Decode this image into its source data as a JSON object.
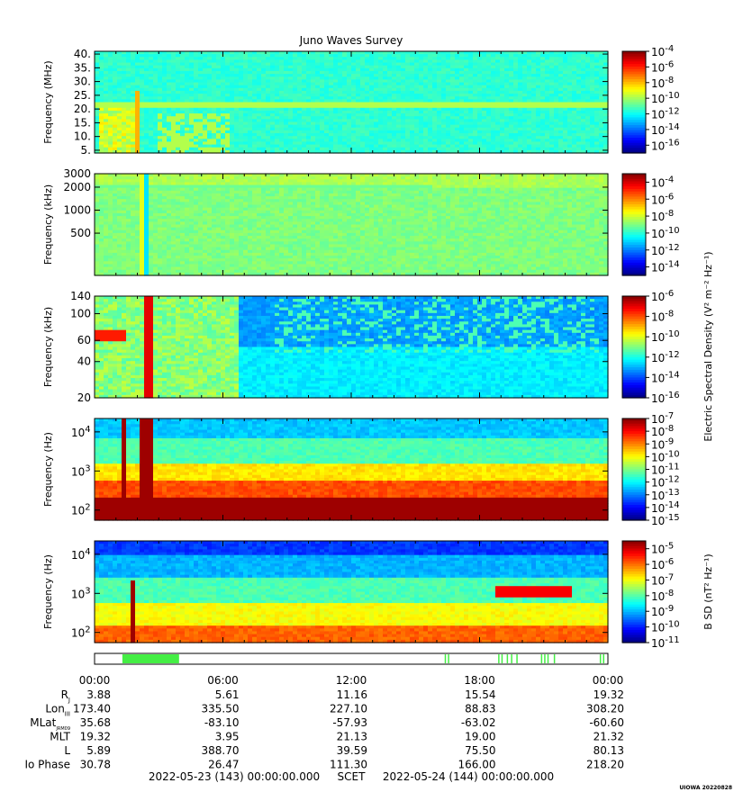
{
  "title": "Juno Waves Survey",
  "x_tick_labels": [
    "00:00",
    "06:00",
    "12:00",
    "18:00",
    "00:00"
  ],
  "ephemeris": [
    {
      "label": "R",
      "sub": "J",
      "values": [
        "3.88",
        "5.61",
        "11.16",
        "15.54",
        "19.32"
      ]
    },
    {
      "label": "Lon",
      "sub": "III",
      "values": [
        "173.40",
        "335.50",
        "227.10",
        "88.83",
        "308.20"
      ]
    },
    {
      "label": "MLat",
      "sub": "JRM09",
      "values": [
        "35.68",
        "-83.10",
        "-57.93",
        "-63.02",
        "-60.60"
      ]
    },
    {
      "label": "MLT",
      "sub": "",
      "values": [
        "19.32",
        "3.95",
        "21.13",
        "19.00",
        "21.32"
      ]
    },
    {
      "label": "L",
      "sub": "",
      "values": [
        "5.89",
        "388.70",
        "39.59",
        "75.50",
        "80.13"
      ]
    },
    {
      "label": "Io Phase",
      "sub": "",
      "values": [
        "30.78",
        "26.47",
        "111.30",
        "166.00",
        "218.20"
      ]
    }
  ],
  "footer": {
    "start": "2022-05-23 (143) 00:00:00.000",
    "scet": "SCET",
    "end": "2022-05-24 (144) 00:00:00.000"
  },
  "credit": "UIOWA 20220828",
  "colorbar_shared_label": "Electric Spectral Density (V² m⁻² Hz⁻¹)",
  "chart_data": [
    {
      "type": "heatmap",
      "panel": "HFR high",
      "ylabel": "Frequency (MHz)",
      "yscale": "linear",
      "ylim": [
        4,
        41
      ],
      "y_ticks": [
        5,
        10,
        15,
        20,
        25,
        30,
        35,
        40
      ],
      "y_tick_labels": [
        "5.",
        "10.",
        "15.",
        "20.",
        "25.",
        "30.",
        "35.",
        "40."
      ],
      "colorbar_exponents": [
        -4,
        -6,
        -8,
        -10,
        -12,
        -14,
        -16
      ],
      "colorbar_range": [
        -17,
        -4
      ],
      "colorbar_label": ""
    },
    {
      "type": "heatmap",
      "panel": "HFR low",
      "ylabel": "Frequency (kHz)",
      "yscale": "log",
      "ylim": [
        140,
        3000
      ],
      "y_ticks": [
        500,
        1000,
        2000,
        3000
      ],
      "y_tick_labels": [
        "500",
        "1000",
        "2000",
        "3000"
      ],
      "colorbar_exponents": [
        -4,
        -6,
        -8,
        -10,
        -12,
        -14
      ],
      "colorbar_range": [
        -15,
        -3
      ],
      "colorbar_label": ""
    },
    {
      "type": "heatmap",
      "panel": "LFR high",
      "ylabel": "Frequency (kHz)",
      "yscale": "log",
      "ylim": [
        20,
        140
      ],
      "y_ticks": [
        20,
        40,
        60,
        100,
        140
      ],
      "y_tick_labels": [
        "20",
        "40",
        "60",
        "100",
        "140"
      ],
      "colorbar_exponents": [
        -6,
        -8,
        -10,
        -12,
        -14,
        -16
      ],
      "colorbar_range": [
        -16,
        -6
      ],
      "colorbar_label": ""
    },
    {
      "type": "heatmap",
      "panel": "LFR low E",
      "ylabel": "Frequency (Hz)",
      "yscale": "log",
      "ylim": [
        55,
        22000
      ],
      "y_ticks": [
        100,
        1000,
        10000
      ],
      "y_tick_labels": [
        "10^2",
        "10^3",
        "10^4"
      ],
      "colorbar_exponents": [
        -7,
        -8,
        -9,
        -10,
        -11,
        -12,
        -13,
        -14,
        -15
      ],
      "colorbar_range": [
        -15,
        -7
      ],
      "colorbar_label": ""
    },
    {
      "type": "heatmap",
      "panel": "LFR low B",
      "ylabel": "Frequency (Hz)",
      "yscale": "log",
      "ylim": [
        55,
        22000
      ],
      "y_ticks": [
        100,
        1000,
        10000
      ],
      "y_tick_labels": [
        "10^2",
        "10^3",
        "10^4"
      ],
      "colorbar_exponents": [
        -5,
        -6,
        -7,
        -8,
        -9,
        -10,
        -11
      ],
      "colorbar_range": [
        -11,
        -4.5
      ],
      "colorbar_label": "B SD (nT² Hz⁻¹)"
    }
  ],
  "mode_bar": {
    "x_units": "hours",
    "xlim": [
      0,
      24
    ],
    "segments": [
      [
        1.3,
        3.95
      ]
    ],
    "marks": [
      16.4,
      16.55,
      18.9,
      19.05,
      19.3,
      19.5,
      19.75,
      20.9,
      21.05,
      21.2,
      21.5,
      23.65,
      23.8
    ]
  }
}
